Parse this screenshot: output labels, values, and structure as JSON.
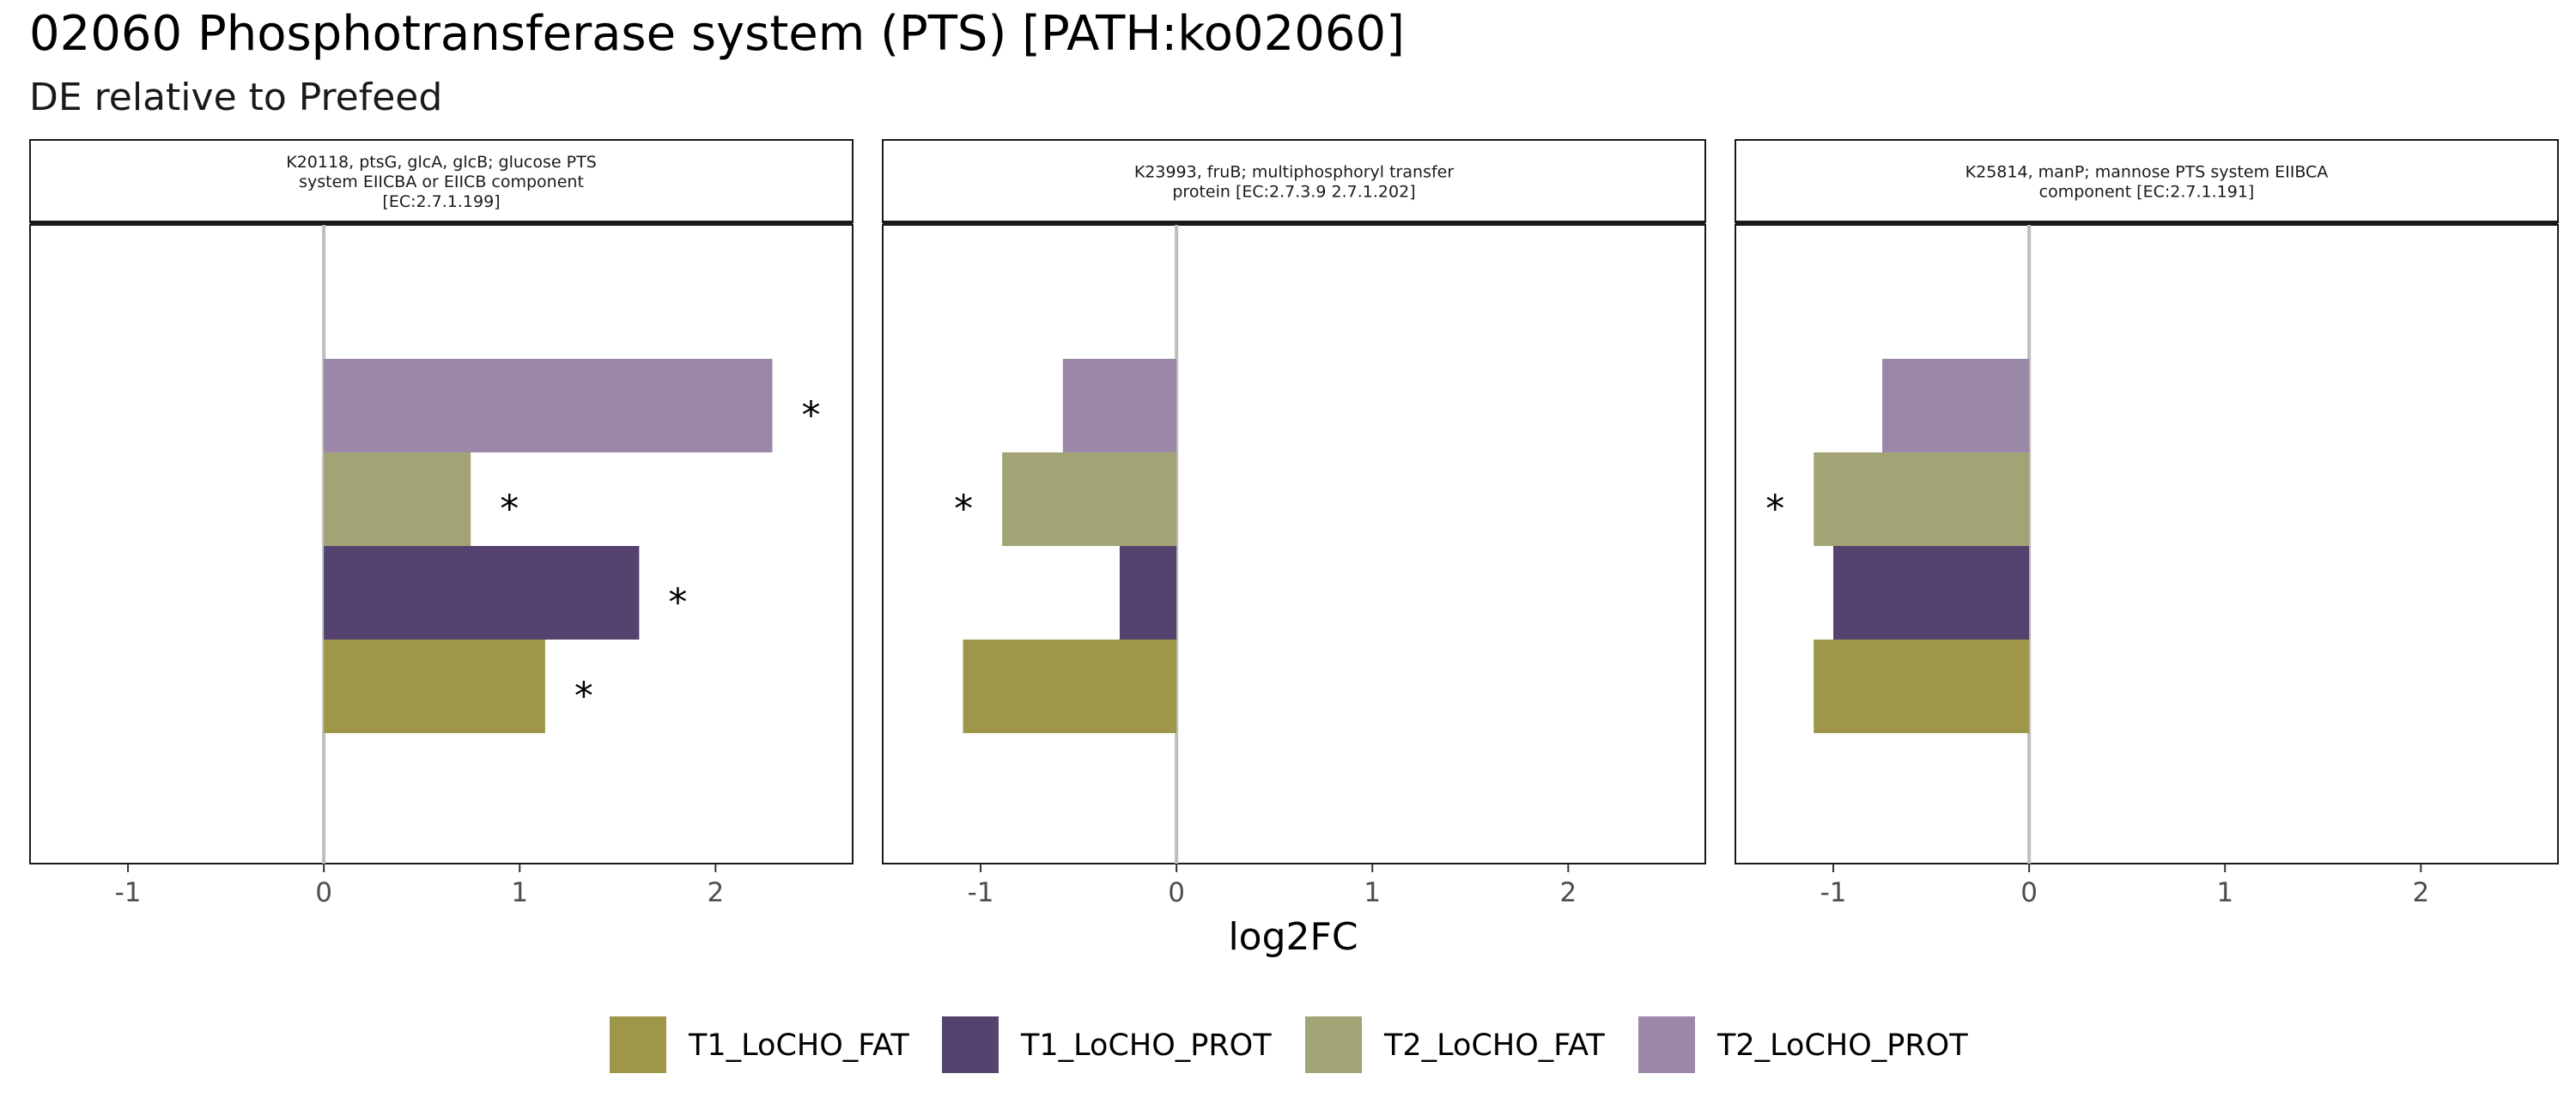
{
  "title": "02060 Phosphotransferase system (PTS) [PATH:ko02060]",
  "subtitle": "DE relative to Prefeed",
  "x_axis_label": "log2FC",
  "x_ticks": [
    "-1",
    "0",
    "1",
    "2"
  ],
  "colors": {
    "T1_LoCHO_FAT": "#9e974a",
    "T1_LoCHO_PROT": "#54436e",
    "T2_LoCHO_FAT": "#a3a476",
    "T2_LoCHO_PROT": "#9b87a6"
  },
  "significance_marker": "*",
  "legend": {
    "placement": "bottom",
    "items": [
      {
        "label": "T1_LoCHO_FAT",
        "color": "#9e974a"
      },
      {
        "label": "T1_LoCHO_PROT",
        "color": "#54436e"
      },
      {
        "label": "T2_LoCHO_FAT",
        "color": "#a3a476"
      },
      {
        "label": "T2_LoCHO_PROT",
        "color": "#9b87a6"
      }
    ]
  },
  "chart_data": {
    "type": "bar",
    "orientation": "horizontal",
    "xlim": [
      -1.5,
      2.7
    ],
    "xlabel": "log2FC",
    "series_order": [
      "T1_LoCHO_FAT",
      "T1_LoCHO_PROT",
      "T2_LoCHO_FAT",
      "T2_LoCHO_PROT"
    ],
    "panels": [
      {
        "strip_lines": [
          "K20118, ptsG, glcA, glcB; glucose PTS",
          "system EIICBA or EIICB component",
          "[EC:2.7.1.199]"
        ],
        "values": {
          "T1_LoCHO_FAT": 1.13,
          "T1_LoCHO_PROT": 1.61,
          "T2_LoCHO_FAT": 0.75,
          "T2_LoCHO_PROT": 2.29
        },
        "significant": {
          "T1_LoCHO_FAT": true,
          "T1_LoCHO_PROT": true,
          "T2_LoCHO_FAT": true,
          "T2_LoCHO_PROT": true
        }
      },
      {
        "strip_lines": [
          "K23993, fruB; multiphosphoryl transfer",
          "protein [EC:2.7.3.9 2.7.1.202]"
        ],
        "values": {
          "T1_LoCHO_FAT": -1.09,
          "T1_LoCHO_PROT": -0.29,
          "T2_LoCHO_FAT": -0.89,
          "T2_LoCHO_PROT": -0.58
        },
        "significant": {
          "T1_LoCHO_FAT": false,
          "T1_LoCHO_PROT": false,
          "T2_LoCHO_FAT": true,
          "T2_LoCHO_PROT": false
        }
      },
      {
        "strip_lines": [
          "K25814, manP; mannose PTS system EIIBCA",
          "component [EC:2.7.1.191]"
        ],
        "values": {
          "T1_LoCHO_FAT": -1.1,
          "T1_LoCHO_PROT": -1.0,
          "T2_LoCHO_FAT": -1.1,
          "T2_LoCHO_PROT": -0.75
        },
        "significant": {
          "T1_LoCHO_FAT": false,
          "T1_LoCHO_PROT": false,
          "T2_LoCHO_FAT": true,
          "T2_LoCHO_PROT": false
        }
      }
    ]
  }
}
